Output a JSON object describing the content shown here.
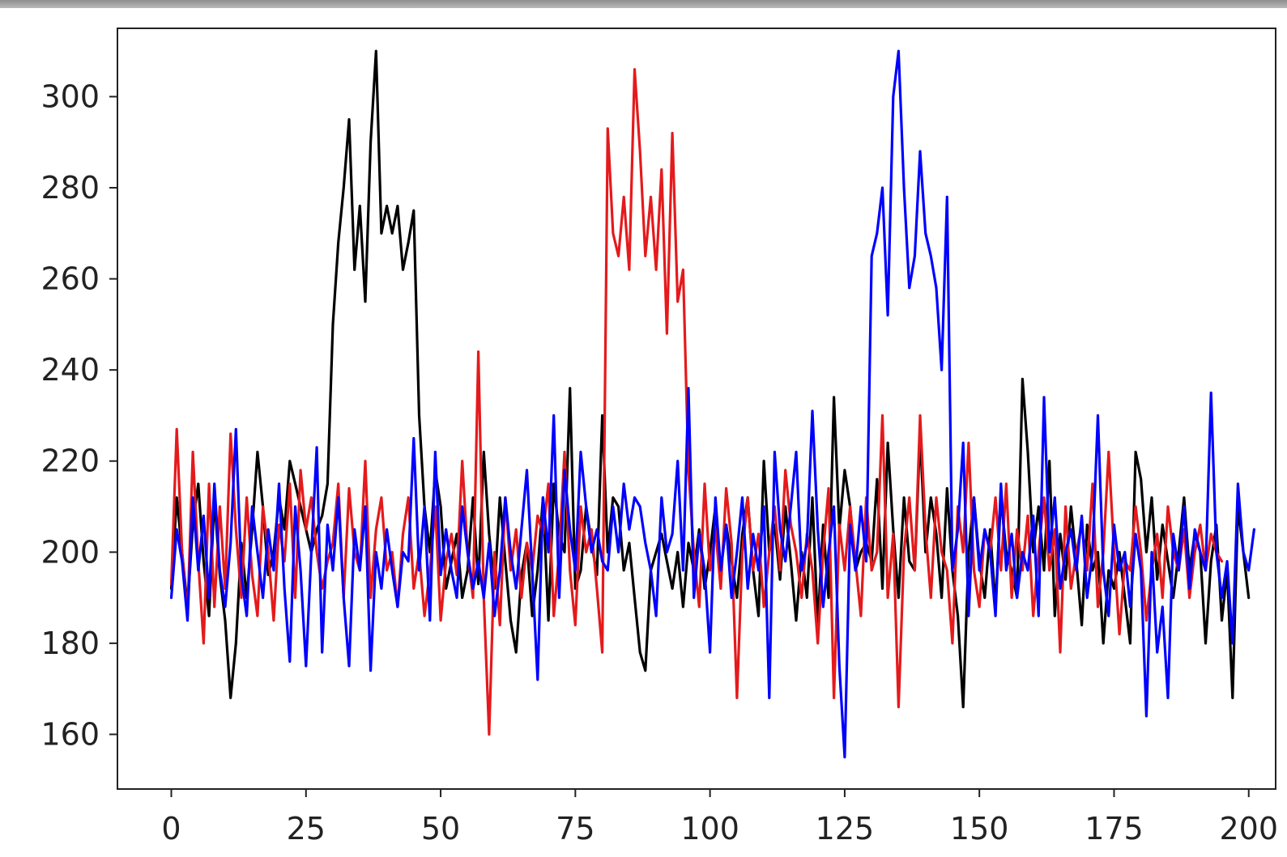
{
  "chart_data": {
    "type": "line",
    "title": "",
    "xlabel": "",
    "ylabel": "",
    "xlim": [
      -10,
      205
    ],
    "ylim": [
      148,
      315
    ],
    "grid": false,
    "legend": "none",
    "x_ticks": [
      "0",
      "25",
      "50",
      "75",
      "100",
      "125",
      "150",
      "175",
      "200"
    ],
    "y_ticks": [
      "160",
      "180",
      "200",
      "220",
      "240",
      "260",
      "280",
      "300"
    ],
    "x_tick_values": [
      0,
      25,
      50,
      75,
      100,
      125,
      150,
      175,
      200
    ],
    "y_tick_values": [
      160,
      180,
      200,
      220,
      240,
      260,
      280,
      300
    ],
    "series": [
      {
        "color": "#000000",
        "x_start": 0,
        "values": [
          192,
          212,
          200,
          188,
          206,
          215,
          198,
          186,
          212,
          195,
          185,
          168,
          180,
          202,
          190,
          205,
          222,
          210,
          195,
          200,
          212,
          205,
          220,
          215,
          210,
          205,
          200,
          205,
          208,
          215,
          250,
          268,
          280,
          295,
          262,
          276,
          255,
          290,
          310,
          270,
          276,
          270,
          276,
          262,
          268,
          275,
          230,
          210,
          200,
          218,
          210,
          192,
          198,
          204,
          190,
          196,
          212,
          193,
          222,
          204,
          192,
          212,
          198,
          185,
          178,
          195,
          202,
          186,
          196,
          212,
          185,
          215,
          204,
          200,
          236,
          192,
          196,
          210,
          202,
          195,
          230,
          200,
          212,
          210,
          196,
          202,
          190,
          178,
          174,
          196,
          200,
          204,
          198,
          192,
          200,
          188,
          202,
          196,
          205,
          192,
          200,
          210,
          196,
          206,
          198,
          190,
          204,
          212,
          196,
          186,
          220,
          200,
          206,
          194,
          210,
          198,
          185,
          200,
          190,
          212,
          184,
          206,
          190,
          234,
          205,
          218,
          210,
          196,
          200,
          202,
          198,
          216,
          192,
          224,
          205,
          190,
          212,
          198,
          196,
          226,
          200,
          212,
          204,
          190,
          214,
          196,
          186,
          166,
          200,
          212,
          198,
          190,
          205,
          188,
          212,
          200,
          196,
          190,
          238,
          222,
          200,
          210,
          196,
          220,
          186,
          204,
          194,
          210,
          198,
          184,
          206,
          196,
          200,
          180,
          196,
          192,
          200,
          190,
          180,
          222,
          216,
          200,
          212,
          194,
          206,
          198,
          190,
          200,
          212,
          196,
          204,
          200,
          180,
          198,
          206,
          185,
          196,
          168,
          210,
          200,
          190
        ]
      },
      {
        "color": "#e41a1c",
        "x_start": 0,
        "values": [
          193,
          227,
          200,
          186,
          222,
          198,
          180,
          215,
          188,
          210,
          192,
          226,
          205,
          190,
          212,
          195,
          186,
          210,
          200,
          185,
          206,
          198,
          215,
          190,
          218,
          205,
          212,
          200,
          192,
          198,
          202,
          215,
          190,
          214,
          200,
          196,
          220,
          190,
          205,
          212,
          196,
          200,
          188,
          204,
          212,
          192,
          200,
          186,
          196,
          210,
          185,
          198,
          204,
          195,
          220,
          200,
          190,
          244,
          190,
          160,
          200,
          184,
          212,
          196,
          205,
          190,
          202,
          196,
          208,
          204,
          215,
          186,
          200,
          222,
          196,
          184,
          210,
          200,
          205,
          192,
          178,
          293,
          270,
          265,
          278,
          262,
          306,
          288,
          265,
          278,
          262,
          284,
          248,
          292,
          255,
          262,
          218,
          200,
          188,
          215,
          196,
          205,
          192,
          214,
          202,
          168,
          200,
          212,
          196,
          204,
          188,
          200,
          210,
          196,
          218,
          206,
          200,
          190,
          204,
          196,
          180,
          200,
          214,
          168,
          206,
          196,
          210,
          198,
          186,
          212,
          196,
          200,
          230,
          190,
          204,
          166,
          200,
          212,
          196,
          230,
          205,
          190,
          212,
          200,
          196,
          180,
          210,
          200,
          224,
          196,
          188,
          205,
          200,
          212,
          196,
          215,
          190,
          205,
          196,
          208,
          186,
          200,
          212,
          196,
          205,
          178,
          210,
          192,
          200,
          206,
          196,
          215,
          188,
          200,
          222,
          200,
          182,
          198,
          196,
          210,
          200,
          185,
          196,
          204,
          190,
          210,
          200,
          196,
          205,
          190,
          200,
          206,
          196,
          204,
          200,
          198
        ]
      },
      {
        "color": "#0000ff",
        "x_start": 0,
        "values": [
          190,
          205,
          198,
          185,
          212,
          196,
          208,
          190,
          215,
          196,
          188,
          202,
          227,
          195,
          186,
          210,
          200,
          190,
          205,
          196,
          215,
          192,
          176,
          210,
          196,
          175,
          200,
          223,
          178,
          206,
          196,
          212,
          190,
          175,
          205,
          196,
          210,
          174,
          200,
          192,
          205,
          196,
          188,
          200,
          198,
          225,
          196,
          210,
          185,
          222,
          195,
          205,
          196,
          190,
          210,
          200,
          192,
          198,
          190,
          202,
          186,
          196,
          212,
          200,
          192,
          205,
          218,
          196,
          172,
          212,
          200,
          230,
          190,
          218,
          205,
          196,
          222,
          210,
          200,
          205,
          198,
          196,
          210,
          200,
          215,
          205,
          212,
          210,
          202,
          196,
          186,
          212,
          200,
          204,
          220,
          196,
          236,
          190,
          204,
          196,
          178,
          212,
          196,
          206,
          190,
          200,
          212,
          192,
          204,
          196,
          210,
          168,
          222,
          205,
          198,
          210,
          222,
          196,
          202,
          231,
          205,
          188,
          200,
          210,
          175,
          155,
          206,
          196,
          210,
          198,
          265,
          270,
          280,
          252,
          300,
          310,
          280,
          258,
          265,
          288,
          270,
          265,
          258,
          240,
          278,
          196,
          205,
          224,
          186,
          212,
          196,
          205,
          200,
          186,
          215,
          196,
          204,
          190,
          200,
          196,
          208,
          186,
          234,
          200,
          212,
          192,
          200,
          205,
          196,
          208,
          190,
          200,
          230,
          196,
          186,
          206,
          196,
          200,
          188,
          204,
          196,
          164,
          200,
          178,
          188,
          168,
          204,
          196,
          210,
          192,
          205,
          200,
          196,
          235,
          200,
          190,
          198,
          180,
          215,
          200,
          196,
          205
        ]
      }
    ]
  }
}
